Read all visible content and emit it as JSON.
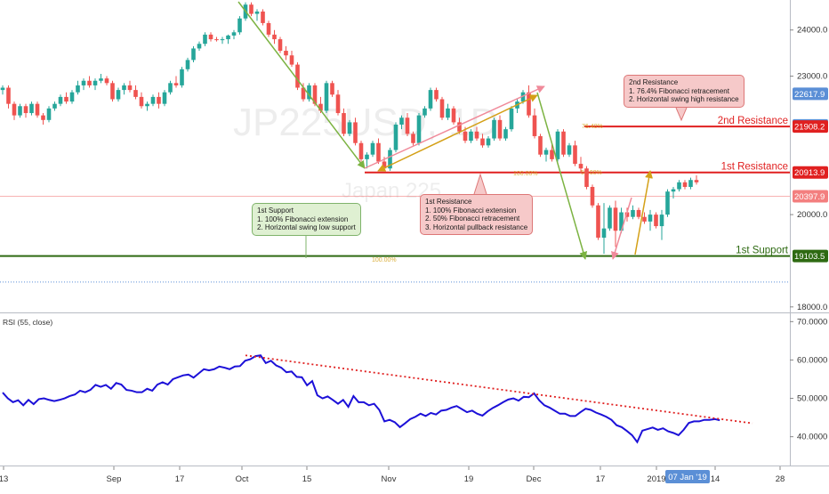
{
  "chart_data": [
    {
      "type": "candlestick",
      "watermark": {
        "symbol": "JP225USD, 1D",
        "name": "Japan 225"
      },
      "x_ticks": [
        "13",
        "Sep",
        "17",
        "Oct",
        "15",
        "Nov",
        "19",
        "Dec",
        "17",
        "2019",
        "14",
        "28"
      ],
      "crosshair_date": "07 Jan '19",
      "y_ticks": [
        "18000.0",
        "20000.0",
        "23000.0",
        "24000.0"
      ],
      "ylim": [
        17900,
        24650
      ],
      "price_labels": [
        {
          "value": 22617.9,
          "text": "22617.9",
          "color": "#5b8fd6"
        },
        {
          "value": 21932.8,
          "text": "21932.8",
          "color": "#5b8fd6"
        },
        {
          "value": 21908.2,
          "text": "21908.2",
          "color": "#e02020"
        },
        {
          "value": 20913.9,
          "text": "20913.9",
          "color": "#e02020"
        },
        {
          "value": 20397.9,
          "text": "20397.9",
          "color": "#f37f7f"
        },
        {
          "value": 19103.5,
          "text": "19103.5",
          "color": "#2e6a12"
        }
      ],
      "levels": [
        {
          "name": "2nd Resistance",
          "value": 21908.2,
          "color": "#e02020"
        },
        {
          "name": "1st Resistance",
          "value": 20913.9,
          "color": "#e02020"
        },
        {
          "name": "1st Support",
          "value": 19103.5,
          "color": "#2e6a12"
        },
        {
          "name": "",
          "value": 18540,
          "color": "#5b8fd6",
          "style": "dotted"
        }
      ],
      "fib_labels": [
        "76.40%",
        "100.00%",
        "50.00%",
        "100.00%"
      ],
      "candles": [
        [
          22700,
          22800,
          22600,
          22750
        ],
        [
          22750,
          22800,
          22300,
          22400
        ],
        [
          22400,
          22450,
          22050,
          22150
        ],
        [
          22150,
          22400,
          22100,
          22350
        ],
        [
          22350,
          22400,
          22100,
          22200
        ],
        [
          22200,
          22450,
          22150,
          22400
        ],
        [
          22400,
          22450,
          22100,
          22150
        ],
        [
          22150,
          22200,
          21950,
          22050
        ],
        [
          22050,
          22350,
          22000,
          22300
        ],
        [
          22300,
          22450,
          22250,
          22400
        ],
        [
          22400,
          22600,
          22350,
          22550
        ],
        [
          22550,
          22650,
          22400,
          22450
        ],
        [
          22450,
          22700,
          22400,
          22650
        ],
        [
          22650,
          22900,
          22600,
          22800
        ],
        [
          22800,
          22950,
          22700,
          22900
        ],
        [
          22900,
          23000,
          22750,
          22800
        ],
        [
          22800,
          22950,
          22700,
          22900
        ],
        [
          22900,
          23050,
          22850,
          22950
        ],
        [
          22950,
          23000,
          22800,
          22850
        ],
        [
          22850,
          22900,
          22450,
          22500
        ],
        [
          22500,
          22750,
          22450,
          22700
        ],
        [
          22700,
          22850,
          22600,
          22800
        ],
        [
          22800,
          22900,
          22650,
          22700
        ],
        [
          22700,
          22800,
          22500,
          22550
        ],
        [
          22550,
          22650,
          22300,
          22350
        ],
        [
          22350,
          22450,
          22250,
          22400
        ],
        [
          22400,
          22600,
          22350,
          22550
        ],
        [
          22550,
          22650,
          22300,
          22400
        ],
        [
          22400,
          22700,
          22350,
          22650
        ],
        [
          22650,
          22900,
          22600,
          22850
        ],
        [
          22850,
          23000,
          22750,
          22800
        ],
        [
          22800,
          23200,
          22750,
          23150
        ],
        [
          23150,
          23400,
          23100,
          23350
        ],
        [
          23350,
          23650,
          23300,
          23600
        ],
        [
          23600,
          23750,
          23550,
          23700
        ],
        [
          23700,
          23950,
          23650,
          23900
        ],
        [
          23900,
          23950,
          23750,
          23800
        ],
        [
          23800,
          23850,
          23750,
          23780
        ],
        [
          23780,
          23850,
          23700,
          23800
        ],
        [
          23800,
          23900,
          23700,
          23880
        ],
        [
          23880,
          24000,
          23800,
          23950
        ],
        [
          23950,
          24300,
          23900,
          24250
        ],
        [
          24250,
          24600,
          24200,
          24550
        ],
        [
          24550,
          24600,
          24300,
          24350
        ],
        [
          24350,
          24450,
          24200,
          24400
        ],
        [
          24400,
          24450,
          24100,
          24150
        ],
        [
          24150,
          24200,
          23850,
          23900
        ],
        [
          23900,
          24000,
          23700,
          23800
        ],
        [
          23800,
          23850,
          23500,
          23550
        ],
        [
          23550,
          23650,
          23350,
          23450
        ],
        [
          23450,
          23550,
          23200,
          23250
        ],
        [
          23250,
          23300,
          22700,
          22750
        ],
        [
          22750,
          22850,
          22450,
          22500
        ],
        [
          22500,
          22850,
          22450,
          22800
        ],
        [
          22800,
          22850,
          22350,
          22400
        ],
        [
          22400,
          22550,
          22200,
          22250
        ],
        [
          22250,
          22900,
          22200,
          22850
        ],
        [
          22850,
          22900,
          22550,
          22600
        ],
        [
          22600,
          22700,
          22150,
          22200
        ],
        [
          22200,
          22300,
          21700,
          21750
        ],
        [
          21750,
          22050,
          21700,
          22000
        ],
        [
          22000,
          22100,
          21500,
          21550
        ],
        [
          21550,
          21600,
          21150,
          21200
        ],
        [
          21200,
          21350,
          21000,
          21300
        ],
        [
          21300,
          21600,
          21250,
          21550
        ],
        [
          21550,
          21650,
          21100,
          21150
        ],
        [
          21150,
          21250,
          20950,
          21000
        ],
        [
          21000,
          21450,
          20950,
          21400
        ],
        [
          21400,
          22000,
          21350,
          21950
        ],
        [
          21950,
          22150,
          21850,
          22100
        ],
        [
          22100,
          22200,
          21700,
          21750
        ],
        [
          21750,
          21800,
          21500,
          21550
        ],
        [
          21550,
          22200,
          21500,
          22150
        ],
        [
          22150,
          22350,
          22100,
          22300
        ],
        [
          22300,
          22750,
          22250,
          22700
        ],
        [
          22700,
          22750,
          22450,
          22500
        ],
        [
          22500,
          22550,
          22050,
          22100
        ],
        [
          22100,
          22400,
          22050,
          22300
        ],
        [
          22300,
          22350,
          21950,
          22000
        ],
        [
          22000,
          22100,
          21750,
          21800
        ],
        [
          21800,
          21900,
          21550,
          21600
        ],
        [
          21600,
          21850,
          21550,
          21800
        ],
        [
          21800,
          21900,
          21600,
          21650
        ],
        [
          21650,
          21750,
          21450,
          21500
        ],
        [
          21500,
          21700,
          21450,
          21650
        ],
        [
          21650,
          22100,
          21600,
          22050
        ],
        [
          22050,
          22150,
          21600,
          21650
        ],
        [
          21650,
          21900,
          21600,
          21850
        ],
        [
          21850,
          22350,
          21800,
          22300
        ],
        [
          22300,
          22500,
          22200,
          22450
        ],
        [
          22450,
          22700,
          22400,
          22650
        ],
        [
          22650,
          22800,
          22100,
          22150
        ],
        [
          22150,
          22300,
          21650,
          21700
        ],
        [
          21700,
          21750,
          21250,
          21300
        ],
        [
          21300,
          21450,
          21150,
          21400
        ],
        [
          21400,
          21550,
          21150,
          21200
        ],
        [
          21200,
          21850,
          21150,
          21800
        ],
        [
          21800,
          21850,
          21250,
          21300
        ],
        [
          21300,
          21550,
          21250,
          21500
        ],
        [
          21500,
          21600,
          21050,
          21100
        ],
        [
          21100,
          21250,
          20900,
          21000
        ],
        [
          21000,
          21050,
          20550,
          20600
        ],
        [
          20600,
          20650,
          20150,
          20200
        ],
        [
          20200,
          20250,
          19450,
          19500
        ],
        [
          19500,
          20250,
          19150,
          19700
        ],
        [
          19700,
          20200,
          19650,
          20150
        ],
        [
          20150,
          20300,
          19300,
          19650
        ],
        [
          19650,
          20150,
          19600,
          20050
        ],
        [
          20050,
          20150,
          19850,
          19950
        ],
        [
          19950,
          20200,
          19900,
          20100
        ],
        [
          20100,
          20150,
          19900,
          19950
        ],
        [
          19950,
          20050,
          19800,
          19850
        ],
        [
          19850,
          20100,
          19650,
          20000
        ],
        [
          20000,
          20050,
          19700,
          19750
        ],
        [
          19750,
          20100,
          19450,
          20000
        ],
        [
          20000,
          20550,
          19950,
          20500
        ],
        [
          20500,
          20600,
          20350,
          20550
        ],
        [
          20550,
          20750,
          20500,
          20700
        ],
        [
          20700,
          20750,
          20550,
          20600
        ],
        [
          20600,
          20800,
          20550,
          20750
        ],
        [
          20750,
          20850,
          20650,
          20700
        ]
      ],
      "rsi": {
        "label": "RSI (55, close)",
        "y_ticks": [
          "40.0000",
          "50.0000",
          "60.0000",
          "70.0000"
        ],
        "ylim": [
          32.5,
          71.7
        ],
        "values": [
          51.5,
          50,
          49,
          49.5,
          48.2,
          49.6,
          48.5,
          49.8,
          50,
          49.6,
          49.3,
          49.6,
          50,
          50.6,
          51,
          52,
          51.6,
          52.2,
          53.5,
          53,
          53.5,
          52.5,
          54,
          53.6,
          52.2,
          52,
          51.6,
          51.6,
          52.5,
          52,
          53.6,
          54.2,
          53.6,
          55,
          55.5,
          56,
          56.2,
          55.4,
          56.5,
          57.6,
          57.3,
          57.6,
          58.3,
          58,
          57.6,
          58.3,
          58.4,
          59.8,
          60.2,
          61,
          61.2,
          59.2,
          59.8,
          58.6,
          58,
          56.8,
          57,
          55.6,
          55.5,
          53.4,
          54.5,
          50.8,
          50,
          50.5,
          49.6,
          48.6,
          49.6,
          47.8,
          50.6,
          49,
          49,
          48.2,
          48.6,
          47,
          44,
          44.4,
          43.8,
          42.5,
          43.5,
          44.6,
          45.2,
          46,
          45.4,
          46.2,
          45.8,
          46.8,
          47,
          47.6,
          48,
          47.2,
          46.4,
          46.8,
          46,
          45.5,
          46.6,
          47.5,
          48.2,
          49,
          49.7,
          50,
          49.4,
          50.4,
          50.3,
          51.3,
          49.5,
          48.2,
          47.6,
          46.8,
          46,
          46,
          45.4,
          45.4,
          46.4,
          47.3,
          47,
          46.3,
          45.8,
          45.2,
          44.4,
          43,
          42.5,
          41.5,
          40.4,
          38.6,
          41.6,
          42,
          42.4,
          41.8,
          42.2,
          41.4,
          41,
          40.4,
          41.8,
          43.6,
          44,
          44,
          44.4,
          44.4,
          44.6,
          44.3
        ],
        "trendline": {
          "from": 61.2,
          "to": 43.5,
          "color": "#e02020"
        }
      }
    }
  ],
  "annotations": {
    "support": {
      "title": "1st Support",
      "lines": [
        "1. 100% Fibonacci extension",
        "2. Horizontal swing low support"
      ]
    },
    "resistance1": {
      "title": "1st Resistance",
      "lines": [
        "1. 100% Fibonacci extension",
        "2. 50% Fibonacci retracement",
        "3. Horizontal pullback resistance"
      ]
    },
    "resistance2": {
      "title": "2nd Resistance",
      "lines": [
        "1. 76.4% Fibonacci retracement",
        "2. Horizontal swing high resistance"
      ]
    }
  },
  "colors": {
    "up": "#26a69a",
    "down": "#ef5350",
    "rsi_line": "#1c10d8"
  }
}
